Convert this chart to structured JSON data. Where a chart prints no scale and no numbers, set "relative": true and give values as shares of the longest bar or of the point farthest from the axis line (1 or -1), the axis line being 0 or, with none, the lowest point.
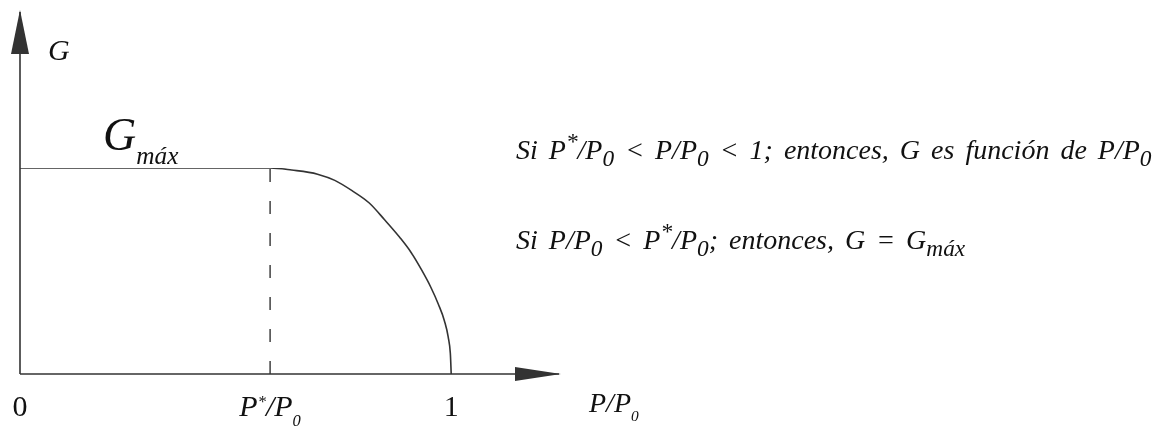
{
  "chart_data": {
    "type": "line",
    "relative": true,
    "xlabel": "P/P$_{0}$",
    "ylabel": "G",
    "x": [
      0,
      0.58,
      0.63,
      0.69,
      0.73,
      0.77,
      0.81,
      0.845,
      0.88,
      0.907,
      0.93,
      0.953,
      0.97,
      0.984,
      0.993,
      0.998,
      1
    ],
    "series": [
      {
        "color": "#333333",
        "values": [
          1,
          1,
          0.99,
          0.97,
          0.94,
          0.89,
          0.83,
          0.75,
          0.665,
          0.59,
          0.51,
          0.42,
          0.34,
          0.26,
          0.18,
          0.1,
          0
        ]
      }
    ],
    "xlim": [
      0,
      1.25
    ],
    "xticks": [
      0,
      1
    ],
    "ref_lines": [
      {
        "axis": "x",
        "value": 0.58,
        "label": "P$^{*}$/P$_{0}$",
        "line_style": "dashed",
        "color": "#333333"
      }
    ],
    "annotations": [
      {
        "text": "G$_{máx}$",
        "x": 0.28,
        "y": 1
      },
      "Si P$^{*}$/P$_{0}$ < P/P$_{0}$ < 1; entonces, G es función de P/P$_{0}$",
      "Si P/P$_{0}$ < P$^{*}$/P$_{0}$; entonces, G = G$_{máx}$"
    ],
    "marker": "none",
    "line_style": "solid"
  }
}
